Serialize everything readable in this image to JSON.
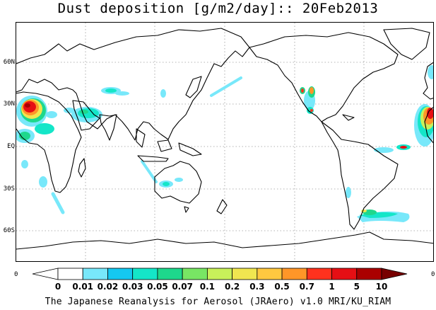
{
  "title": "Dust deposition [g/m2/day]:: 20Feb2013",
  "lat_labels": [
    "60N",
    "30N",
    "EQ",
    "30S",
    "60S"
  ],
  "edge_labels": {
    "left": "0",
    "right": "0"
  },
  "colorbar": {
    "ticks": [
      "0",
      "0.01",
      "0.02",
      "0.03",
      "0.05",
      "0.07",
      "0.1",
      "0.2",
      "0.3",
      "0.5",
      "0.7",
      "1",
      "5",
      "10"
    ],
    "colors": [
      "#ffffff",
      "#ffffff",
      "#78e8fa",
      "#14c8f0",
      "#14e6c8",
      "#1ed88c",
      "#78e664",
      "#c8f05a",
      "#f0e650",
      "#ffc840",
      "#ff9628",
      "#ff321e",
      "#e60f14",
      "#aa0000",
      "#780000"
    ]
  },
  "credit": "The Japanese Reanalysis for Aerosol (JRAero) v1.0 MRI/KU_RIAM"
}
